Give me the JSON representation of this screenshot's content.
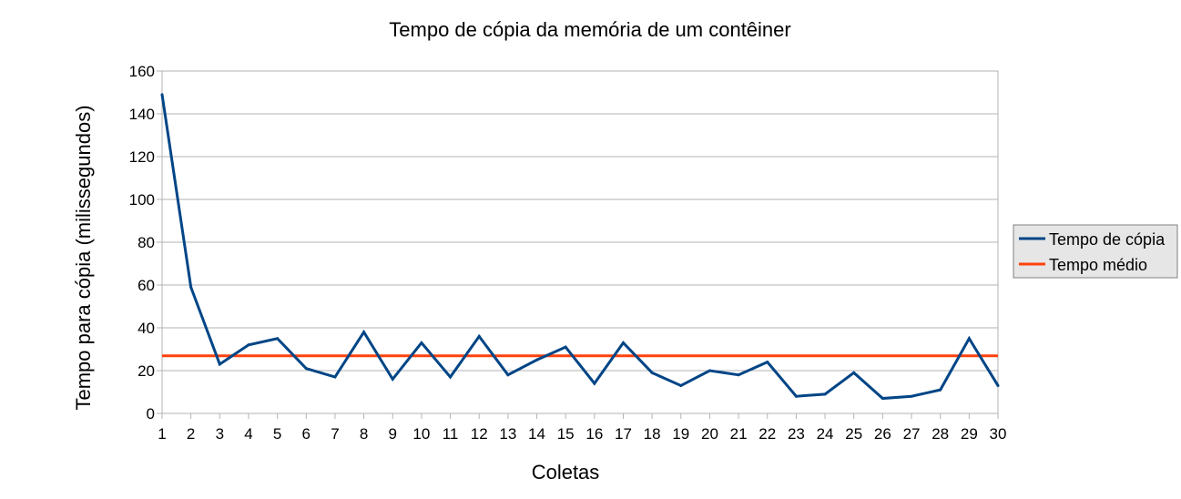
{
  "chart_data": {
    "type": "line",
    "title": "Tempo de cópia da memória de um contêiner",
    "xlabel": "Coletas",
    "ylabel": "Tempo para cópia (milissegundos)",
    "ylim": [
      0,
      160
    ],
    "yticks": [
      "0",
      "20",
      "40",
      "60",
      "80",
      "100",
      "120",
      "140",
      "160"
    ],
    "categories": [
      "1",
      "2",
      "3",
      "4",
      "5",
      "6",
      "7",
      "8",
      "9",
      "10",
      "11",
      "12",
      "13",
      "14",
      "15",
      "16",
      "17",
      "18",
      "19",
      "20",
      "21",
      "22",
      "23",
      "24",
      "25",
      "26",
      "27",
      "28",
      "29",
      "30"
    ],
    "grid": true,
    "legend_position": "right",
    "series": [
      {
        "name": "Tempo de cópia",
        "color": "#004586",
        "values": [
          149,
          59,
          23,
          32,
          35,
          21,
          17,
          38,
          16,
          33,
          17,
          36,
          18,
          25,
          31,
          14,
          33,
          19,
          13,
          20,
          18,
          24,
          8,
          9,
          19,
          7,
          8,
          11,
          35,
          13
        ]
      },
      {
        "name": "Tempo médio",
        "color": "#ff420e",
        "values": [
          26.9,
          26.9,
          26.9,
          26.9,
          26.9,
          26.9,
          26.9,
          26.9,
          26.9,
          26.9,
          26.9,
          26.9,
          26.9,
          26.9,
          26.9,
          26.9,
          26.9,
          26.9,
          26.9,
          26.9,
          26.9,
          26.9,
          26.9,
          26.9,
          26.9,
          26.9,
          26.9,
          26.9,
          26.9,
          26.9
        ]
      }
    ]
  }
}
